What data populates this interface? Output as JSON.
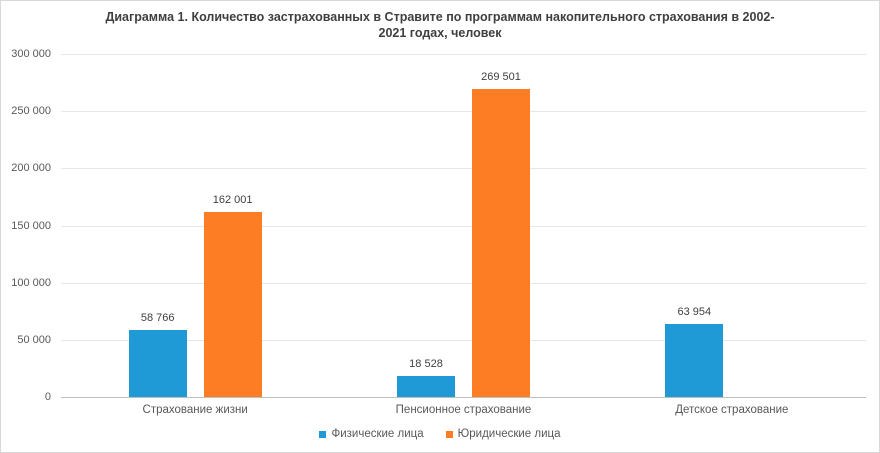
{
  "header": {
    "title_line1": "Диаграмма 1. Количество застрахованных в Стравите по программам накопительного страхования в 2002-",
    "title_line2": "2021 годах, человек"
  },
  "colors": {
    "individuals_series": "#1f9ad7",
    "legal_entities_series": "#fc7d23",
    "gridline": "#e7e7e7",
    "axis_line": "#bfbfbf",
    "title_text": "#3f3f3f",
    "data_label_text": "#404040",
    "axis_text": "#595959"
  },
  "chart_data": {
    "type": "bar",
    "title": "Диаграмма 1. Количество застрахованных в Стравите по программам накопительного страхования в 2002-2021 годах, человек",
    "categories": [
      "Страхование жизни",
      "Пенсионное страхование",
      "Детское страхование"
    ],
    "series": [
      {
        "name": "Физические лица",
        "color": "#1f9ad7",
        "values": [
          58766,
          18528,
          63954
        ]
      },
      {
        "name": "Юридические лица",
        "color": "#fc7d23",
        "values": [
          162001,
          269501,
          null
        ]
      }
    ],
    "y_ticks": [
      {
        "value": 0,
        "label": "0"
      },
      {
        "value": 50000,
        "label": "50 000"
      },
      {
        "value": 100000,
        "label": "100 000"
      },
      {
        "value": 150000,
        "label": "150 000"
      },
      {
        "value": 200000,
        "label": "200 000"
      },
      {
        "value": 250000,
        "label": "250 000"
      },
      {
        "value": 300000,
        "label": "300 000"
      }
    ],
    "ylim": [
      0,
      300000
    ],
    "grid": true,
    "data_labels_visible": true,
    "legend_position": "bottom",
    "number_format": "space-thousands"
  }
}
